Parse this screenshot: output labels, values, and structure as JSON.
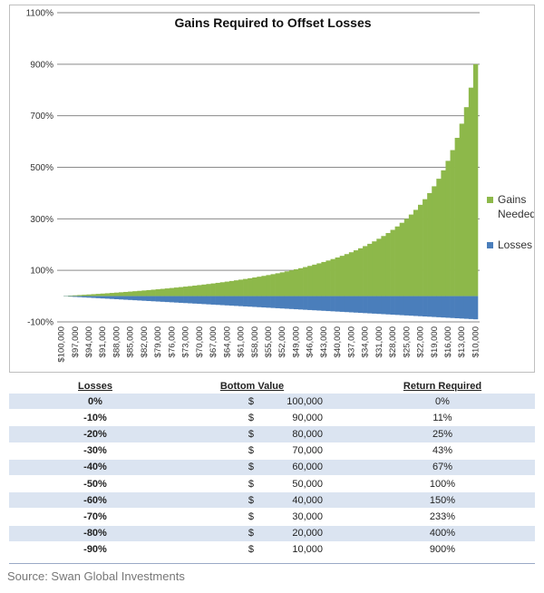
{
  "chart_data": {
    "type": "bar",
    "stacked": true,
    "title": "Gains Required to Offset Losses",
    "ylim": [
      -100,
      1100
    ],
    "yticks": [
      "1100%",
      "900%",
      "700%",
      "500%",
      "300%",
      "100%",
      "-100%"
    ],
    "ytick_values": [
      1100,
      900,
      700,
      500,
      300,
      100,
      -100
    ],
    "grid": true,
    "legend_position": "right",
    "bottom_values": [
      100000,
      99000,
      98000,
      97000,
      96000,
      95000,
      94000,
      93000,
      92000,
      91000,
      90000,
      89000,
      88000,
      87000,
      86000,
      85000,
      84000,
      83000,
      82000,
      81000,
      80000,
      79000,
      78000,
      77000,
      76000,
      75000,
      74000,
      73000,
      72000,
      71000,
      70000,
      69000,
      68000,
      67000,
      66000,
      65000,
      64000,
      63000,
      62000,
      61000,
      60000,
      59000,
      58000,
      57000,
      56000,
      55000,
      54000,
      53000,
      52000,
      51000,
      50000,
      49000,
      48000,
      47000,
      46000,
      45000,
      44000,
      43000,
      42000,
      41000,
      40000,
      39000,
      38000,
      37000,
      36000,
      35000,
      34000,
      33000,
      32000,
      31000,
      30000,
      29000,
      28000,
      27000,
      26000,
      25000,
      24000,
      23000,
      22000,
      21000,
      20000,
      19000,
      18000,
      17000,
      16000,
      15000,
      14000,
      13000,
      12000,
      11000,
      10000
    ],
    "x_tick_labels": [
      "$100,000",
      "$97,000",
      "$94,000",
      "$91,000",
      "$88,000",
      "$85,000",
      "$82,000",
      "$79,000",
      "$76,000",
      "$73,000",
      "$70,000",
      "$67,000",
      "$64,000",
      "$61,000",
      "$58,000",
      "$55,000",
      "$52,000",
      "$49,000",
      "$46,000",
      "$43,000",
      "$40,000",
      "$37,000",
      "$34,000",
      "$31,000",
      "$28,000",
      "$25,000",
      "$22,000",
      "$19,000",
      "$16,000",
      "$13,000",
      "$10,000"
    ],
    "x_tick_every": 3,
    "series": [
      {
        "name": "Gains Needed",
        "color": "#8db84a"
      },
      {
        "name": "Losses",
        "color": "#4a7ebb"
      }
    ]
  },
  "table": {
    "headers": [
      "Losses",
      "Bottom Value",
      "Return Required"
    ],
    "currency_symbol": "$",
    "rows": [
      {
        "loss": "0%",
        "bottom": "100,000",
        "ret": "0%"
      },
      {
        "loss": "-10%",
        "bottom": "90,000",
        "ret": "11%"
      },
      {
        "loss": "-20%",
        "bottom": "80,000",
        "ret": "25%"
      },
      {
        "loss": "-30%",
        "bottom": "70,000",
        "ret": "43%"
      },
      {
        "loss": "-40%",
        "bottom": "60,000",
        "ret": "67%"
      },
      {
        "loss": "-50%",
        "bottom": "50,000",
        "ret": "100%"
      },
      {
        "loss": "-60%",
        "bottom": "40,000",
        "ret": "150%"
      },
      {
        "loss": "-70%",
        "bottom": "30,000",
        "ret": "233%"
      },
      {
        "loss": "-80%",
        "bottom": "20,000",
        "ret": "400%"
      },
      {
        "loss": "-90%",
        "bottom": "10,000",
        "ret": "900%"
      }
    ]
  },
  "source": "Source: Swan Global Investments",
  "colors": {
    "band": "#dbe4f1",
    "gains": "#8db84a",
    "losses": "#4a7ebb",
    "grid": "#8a8a8a"
  }
}
